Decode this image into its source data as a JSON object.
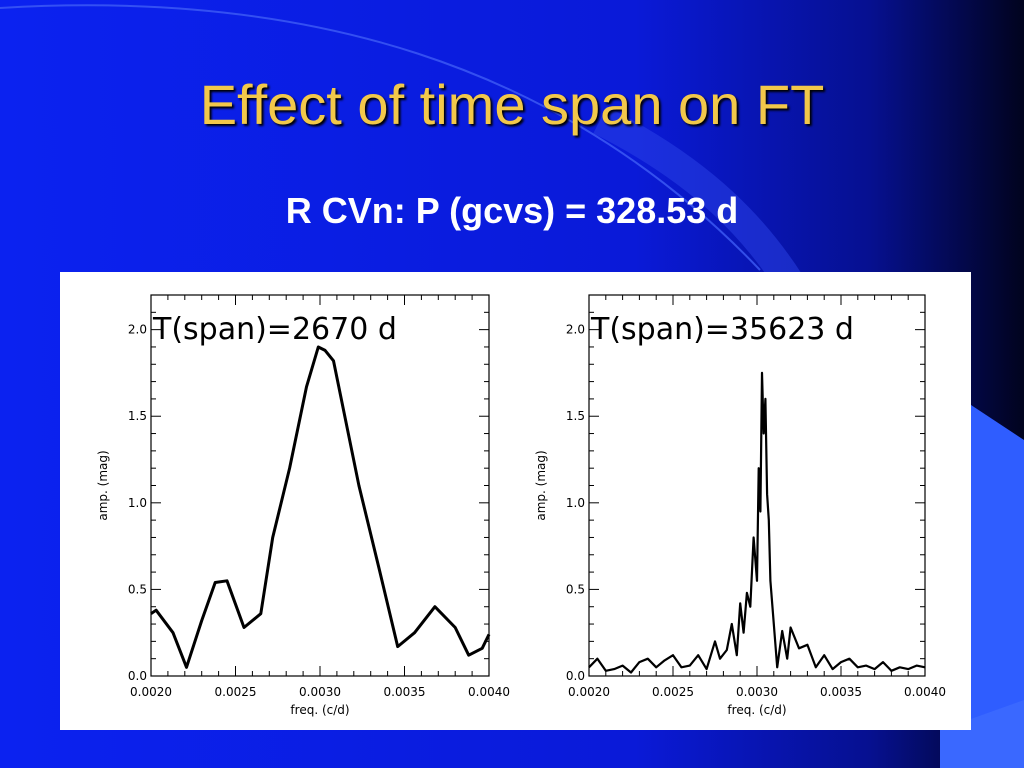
{
  "slide": {
    "title": "Effect of time span on FT",
    "subtitle": "R CVn: P (gcvs) = 328.53 d",
    "colors": {
      "background": "#0a1fe0",
      "title": "#f2c84a",
      "subtitle": "#ffffff",
      "panel": "#ffffff"
    }
  },
  "chart_data": [
    {
      "type": "line",
      "annotation": "T(span)=2670 d",
      "xlabel": "freq. (c/d)",
      "ylabel": "amp. (mag)",
      "xlim": [
        0.002,
        0.004
      ],
      "ylim": [
        0.0,
        2.2
      ],
      "xticks": [
        "0.0020",
        "0.0025",
        "0.0030",
        "0.0035",
        "0.0040"
      ],
      "yticks": [
        "0.0",
        "0.5",
        "1.0",
        "1.5",
        "2.0"
      ],
      "grid": false,
      "x": [
        0.002,
        0.00203,
        0.00213,
        0.00221,
        0.0023,
        0.00238,
        0.00245,
        0.00255,
        0.00265,
        0.00272,
        0.00282,
        0.00292,
        0.00299,
        0.00303,
        0.00308,
        0.00323,
        0.00335,
        0.00346,
        0.00356,
        0.00368,
        0.0038,
        0.00388,
        0.00396,
        0.004
      ],
      "y": [
        0.36,
        0.38,
        0.25,
        0.05,
        0.32,
        0.54,
        0.55,
        0.28,
        0.36,
        0.8,
        1.2,
        1.67,
        1.9,
        1.88,
        1.82,
        1.1,
        0.62,
        0.17,
        0.25,
        0.4,
        0.28,
        0.12,
        0.16,
        0.24
      ]
    },
    {
      "type": "line",
      "annotation": "T(span)=35623 d",
      "xlabel": "freq. (c/d)",
      "ylabel": "amp. (mag)",
      "xlim": [
        0.002,
        0.004
      ],
      "ylim": [
        0.0,
        2.2
      ],
      "xticks": [
        "0.0020",
        "0.0025",
        "0.0030",
        "0.0035",
        "0.0040"
      ],
      "yticks": [
        "0.0",
        "0.5",
        "1.0",
        "1.5",
        "2.0"
      ],
      "grid": false,
      "x": [
        0.002,
        0.00205,
        0.0021,
        0.00215,
        0.0022,
        0.00225,
        0.0023,
        0.00235,
        0.0024,
        0.00245,
        0.0025,
        0.00255,
        0.0026,
        0.00265,
        0.0027,
        0.00275,
        0.00278,
        0.00282,
        0.00285,
        0.00288,
        0.0029,
        0.00292,
        0.00294,
        0.00296,
        0.00298,
        0.003,
        0.00301,
        0.00302,
        0.00303,
        0.00304,
        0.00305,
        0.00306,
        0.00307,
        0.00308,
        0.0031,
        0.00312,
        0.00315,
        0.00318,
        0.0032,
        0.00325,
        0.0033,
        0.00335,
        0.0034,
        0.00345,
        0.0035,
        0.00355,
        0.0036,
        0.00365,
        0.0037,
        0.00375,
        0.0038,
        0.00385,
        0.0039,
        0.00395,
        0.004
      ],
      "y": [
        0.05,
        0.1,
        0.03,
        0.04,
        0.06,
        0.02,
        0.08,
        0.1,
        0.05,
        0.09,
        0.12,
        0.05,
        0.06,
        0.12,
        0.04,
        0.2,
        0.1,
        0.15,
        0.3,
        0.12,
        0.42,
        0.25,
        0.48,
        0.4,
        0.8,
        0.55,
        1.2,
        0.95,
        1.75,
        1.4,
        1.6,
        1.05,
        0.9,
        0.55,
        0.3,
        0.05,
        0.26,
        0.1,
        0.28,
        0.16,
        0.18,
        0.05,
        0.12,
        0.04,
        0.08,
        0.1,
        0.05,
        0.06,
        0.04,
        0.08,
        0.03,
        0.05,
        0.04,
        0.06,
        0.05
      ]
    }
  ]
}
